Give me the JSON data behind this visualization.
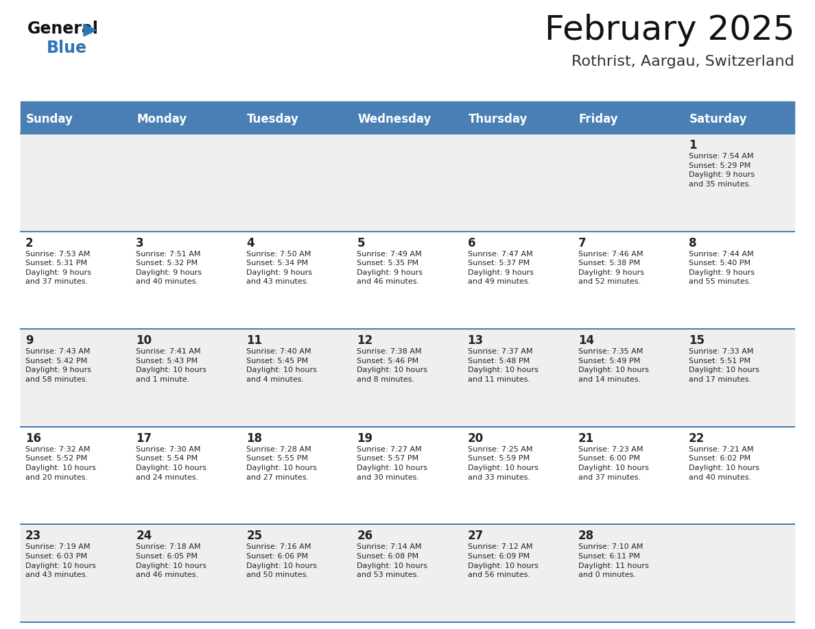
{
  "title": "February 2025",
  "subtitle": "Rothrist, Aargau, Switzerland",
  "days_of_week": [
    "Sunday",
    "Monday",
    "Tuesday",
    "Wednesday",
    "Thursday",
    "Friday",
    "Saturday"
  ],
  "header_bg_color": "#4a7fb5",
  "header_text_color": "#ffffff",
  "row_alt_color": "#efefef",
  "row_white_color": "#ffffff",
  "separator_color": "#4a7fb5",
  "day_number_color": "#222222",
  "cell_text_color": "#222222",
  "title_color": "#111111",
  "subtitle_color": "#333333",
  "logo_general_color": "#111111",
  "logo_blue_color": "#2e75b6",
  "logo_triangle_color": "#2e75b6",
  "background_color": "#ffffff",
  "calendar_data": [
    [
      {
        "day": null,
        "sunrise": null,
        "sunset": null,
        "daylight": null
      },
      {
        "day": null,
        "sunrise": null,
        "sunset": null,
        "daylight": null
      },
      {
        "day": null,
        "sunrise": null,
        "sunset": null,
        "daylight": null
      },
      {
        "day": null,
        "sunrise": null,
        "sunset": null,
        "daylight": null
      },
      {
        "day": null,
        "sunrise": null,
        "sunset": null,
        "daylight": null
      },
      {
        "day": null,
        "sunrise": null,
        "sunset": null,
        "daylight": null
      },
      {
        "day": 1,
        "sunrise": "7:54 AM",
        "sunset": "5:29 PM",
        "daylight": "9 hours\nand 35 minutes."
      }
    ],
    [
      {
        "day": 2,
        "sunrise": "7:53 AM",
        "sunset": "5:31 PM",
        "daylight": "9 hours\nand 37 minutes."
      },
      {
        "day": 3,
        "sunrise": "7:51 AM",
        "sunset": "5:32 PM",
        "daylight": "9 hours\nand 40 minutes."
      },
      {
        "day": 4,
        "sunrise": "7:50 AM",
        "sunset": "5:34 PM",
        "daylight": "9 hours\nand 43 minutes."
      },
      {
        "day": 5,
        "sunrise": "7:49 AM",
        "sunset": "5:35 PM",
        "daylight": "9 hours\nand 46 minutes."
      },
      {
        "day": 6,
        "sunrise": "7:47 AM",
        "sunset": "5:37 PM",
        "daylight": "9 hours\nand 49 minutes."
      },
      {
        "day": 7,
        "sunrise": "7:46 AM",
        "sunset": "5:38 PM",
        "daylight": "9 hours\nand 52 minutes."
      },
      {
        "day": 8,
        "sunrise": "7:44 AM",
        "sunset": "5:40 PM",
        "daylight": "9 hours\nand 55 minutes."
      }
    ],
    [
      {
        "day": 9,
        "sunrise": "7:43 AM",
        "sunset": "5:42 PM",
        "daylight": "9 hours\nand 58 minutes."
      },
      {
        "day": 10,
        "sunrise": "7:41 AM",
        "sunset": "5:43 PM",
        "daylight": "10 hours\nand 1 minute."
      },
      {
        "day": 11,
        "sunrise": "7:40 AM",
        "sunset": "5:45 PM",
        "daylight": "10 hours\nand 4 minutes."
      },
      {
        "day": 12,
        "sunrise": "7:38 AM",
        "sunset": "5:46 PM",
        "daylight": "10 hours\nand 8 minutes."
      },
      {
        "day": 13,
        "sunrise": "7:37 AM",
        "sunset": "5:48 PM",
        "daylight": "10 hours\nand 11 minutes."
      },
      {
        "day": 14,
        "sunrise": "7:35 AM",
        "sunset": "5:49 PM",
        "daylight": "10 hours\nand 14 minutes."
      },
      {
        "day": 15,
        "sunrise": "7:33 AM",
        "sunset": "5:51 PM",
        "daylight": "10 hours\nand 17 minutes."
      }
    ],
    [
      {
        "day": 16,
        "sunrise": "7:32 AM",
        "sunset": "5:52 PM",
        "daylight": "10 hours\nand 20 minutes."
      },
      {
        "day": 17,
        "sunrise": "7:30 AM",
        "sunset": "5:54 PM",
        "daylight": "10 hours\nand 24 minutes."
      },
      {
        "day": 18,
        "sunrise": "7:28 AM",
        "sunset": "5:55 PM",
        "daylight": "10 hours\nand 27 minutes."
      },
      {
        "day": 19,
        "sunrise": "7:27 AM",
        "sunset": "5:57 PM",
        "daylight": "10 hours\nand 30 minutes."
      },
      {
        "day": 20,
        "sunrise": "7:25 AM",
        "sunset": "5:59 PM",
        "daylight": "10 hours\nand 33 minutes."
      },
      {
        "day": 21,
        "sunrise": "7:23 AM",
        "sunset": "6:00 PM",
        "daylight": "10 hours\nand 37 minutes."
      },
      {
        "day": 22,
        "sunrise": "7:21 AM",
        "sunset": "6:02 PM",
        "daylight": "10 hours\nand 40 minutes."
      }
    ],
    [
      {
        "day": 23,
        "sunrise": "7:19 AM",
        "sunset": "6:03 PM",
        "daylight": "10 hours\nand 43 minutes."
      },
      {
        "day": 24,
        "sunrise": "7:18 AM",
        "sunset": "6:05 PM",
        "daylight": "10 hours\nand 46 minutes."
      },
      {
        "day": 25,
        "sunrise": "7:16 AM",
        "sunset": "6:06 PM",
        "daylight": "10 hours\nand 50 minutes."
      },
      {
        "day": 26,
        "sunrise": "7:14 AM",
        "sunset": "6:08 PM",
        "daylight": "10 hours\nand 53 minutes."
      },
      {
        "day": 27,
        "sunrise": "7:12 AM",
        "sunset": "6:09 PM",
        "daylight": "10 hours\nand 56 minutes."
      },
      {
        "day": 28,
        "sunrise": "7:10 AM",
        "sunset": "6:11 PM",
        "daylight": "11 hours\nand 0 minutes."
      },
      {
        "day": null,
        "sunrise": null,
        "sunset": null,
        "daylight": null
      }
    ]
  ]
}
